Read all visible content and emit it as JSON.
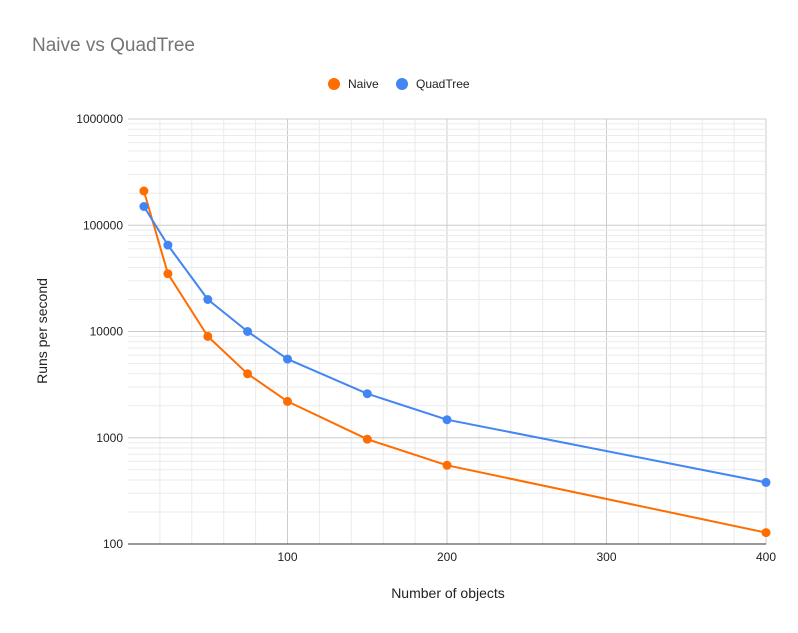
{
  "chart_data": {
    "type": "line",
    "title": "Naive vs QuadTree",
    "xlabel": "Number of objects",
    "ylabel": "Runs per second",
    "x": [
      10,
      25,
      50,
      75,
      100,
      150,
      200,
      400
    ],
    "series": [
      {
        "name": "Naive",
        "color": "#ff6d01",
        "values": [
          210000,
          35000,
          9000,
          4000,
          2200,
          970,
          550,
          128
        ]
      },
      {
        "name": "QuadTree",
        "color": "#4285f4",
        "values": [
          150000,
          65000,
          20000,
          10000,
          5500,
          2600,
          1480,
          380
        ]
      }
    ],
    "xlim": [
      0,
      400
    ],
    "ylim": [
      100,
      1000000
    ],
    "y_scale": "log",
    "xticks": [
      "100",
      "200",
      "300",
      "400"
    ],
    "yticks": [
      "100",
      "1000",
      "10000",
      "100000",
      "1000000"
    ],
    "legend_position": "top-center",
    "grid": true
  }
}
